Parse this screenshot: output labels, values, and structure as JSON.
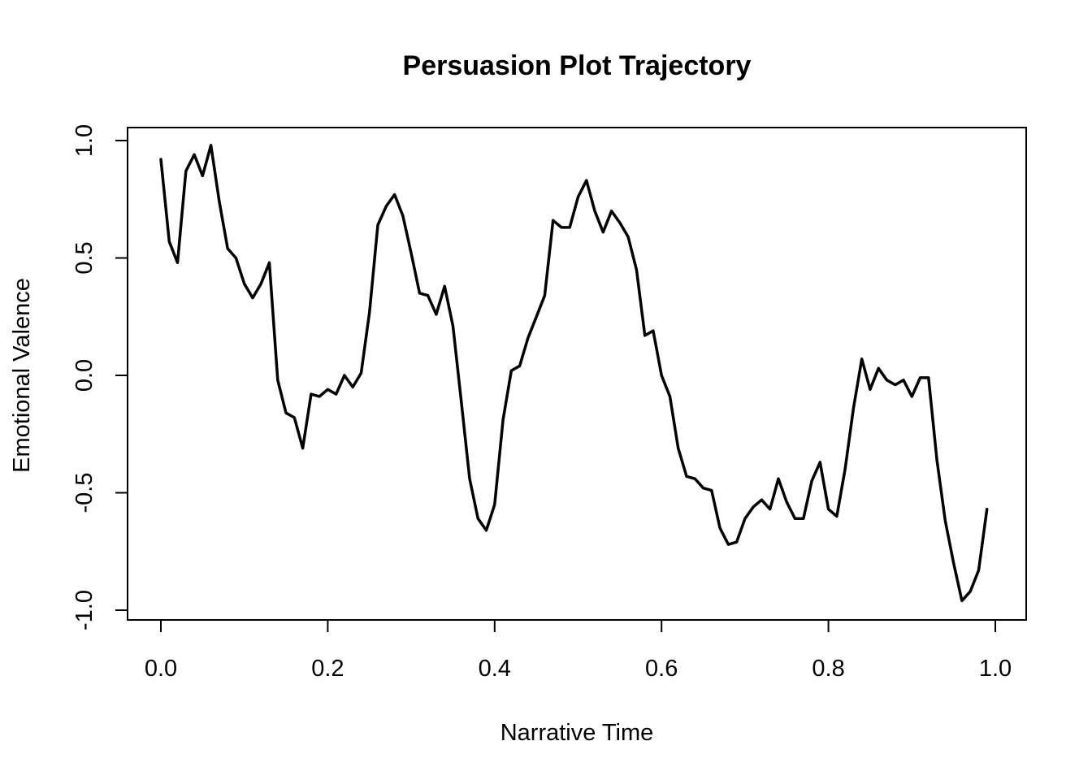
{
  "chart_data": {
    "type": "line",
    "title": "Persuasion Plot Trajectory",
    "xlabel": "Narrative Time",
    "ylabel": "Emotional Valence",
    "xlim": [
      0,
      1
    ],
    "ylim": [
      -1,
      1
    ],
    "xticks": [
      0.0,
      0.2,
      0.4,
      0.6,
      0.8,
      1.0
    ],
    "xtick_labels": [
      "0.0",
      "0.2",
      "0.4",
      "0.6",
      "0.8",
      "1.0"
    ],
    "yticks": [
      -1.0,
      -0.5,
      0.0,
      0.5,
      1.0
    ],
    "ytick_labels": [
      "-1.0",
      "-0.5",
      "0.0",
      "0.5",
      "1.0"
    ],
    "grid": false,
    "legend": "none",
    "line_color": "#000000",
    "series": [
      {
        "x": [
          0.0,
          0.01,
          0.02,
          0.03,
          0.04,
          0.05,
          0.06,
          0.07,
          0.08,
          0.09,
          0.1,
          0.11,
          0.12,
          0.13,
          0.14,
          0.15,
          0.16,
          0.17,
          0.18,
          0.19,
          0.2,
          0.21,
          0.22,
          0.23,
          0.24,
          0.25,
          0.26,
          0.27,
          0.28,
          0.29,
          0.3,
          0.31,
          0.32,
          0.33,
          0.34,
          0.35,
          0.36,
          0.37,
          0.38,
          0.39,
          0.4,
          0.41,
          0.42,
          0.43,
          0.44,
          0.45,
          0.46,
          0.47,
          0.48,
          0.49,
          0.5,
          0.51,
          0.52,
          0.53,
          0.54,
          0.55,
          0.56,
          0.57,
          0.58,
          0.59,
          0.6,
          0.61,
          0.62,
          0.63,
          0.64,
          0.65,
          0.66,
          0.67,
          0.68,
          0.69,
          0.7,
          0.71,
          0.72,
          0.73,
          0.74,
          0.75,
          0.76,
          0.77,
          0.78,
          0.79,
          0.8,
          0.81,
          0.82,
          0.83,
          0.84,
          0.85,
          0.86,
          0.87,
          0.88,
          0.89,
          0.9,
          0.91,
          0.92,
          0.93,
          0.94,
          0.95,
          0.96,
          0.97,
          0.98,
          0.99
        ],
        "values": [
          0.92,
          0.57,
          0.48,
          0.87,
          0.94,
          0.85,
          0.98,
          0.74,
          0.54,
          0.5,
          0.39,
          0.33,
          0.39,
          0.48,
          -0.02,
          -0.16,
          -0.18,
          -0.31,
          -0.08,
          -0.09,
          -0.06,
          -0.08,
          0.0,
          -0.05,
          0.01,
          0.27,
          0.64,
          0.72,
          0.77,
          0.68,
          0.52,
          0.35,
          0.34,
          0.26,
          0.38,
          0.21,
          -0.11,
          -0.44,
          -0.61,
          -0.66,
          -0.55,
          -0.19,
          0.02,
          0.04,
          0.16,
          0.25,
          0.34,
          0.66,
          0.63,
          0.63,
          0.76,
          0.83,
          0.7,
          0.61,
          0.7,
          0.65,
          0.59,
          0.45,
          0.17,
          0.19,
          0.0,
          -0.09,
          -0.31,
          -0.43,
          -0.44,
          -0.48,
          -0.49,
          -0.65,
          -0.72,
          -0.71,
          -0.61,
          -0.56,
          -0.53,
          -0.57,
          -0.44,
          -0.54,
          -0.61,
          -0.61,
          -0.45,
          -0.37,
          -0.57,
          -0.6,
          -0.4,
          -0.14,
          0.07,
          -0.06,
          0.03,
          -0.02,
          -0.04,
          -0.02,
          -0.09,
          -0.01,
          -0.01,
          -0.36,
          -0.62,
          -0.8,
          -0.96,
          -0.92,
          -0.83,
          -0.57
        ]
      }
    ]
  }
}
